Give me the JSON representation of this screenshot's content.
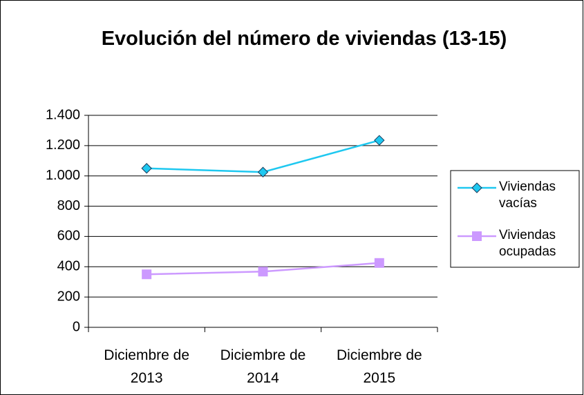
{
  "chart_data": {
    "type": "line",
    "title": "Evolución del número de viviendas (13-15)",
    "categories": [
      "Diciembre de 2013",
      "Diciembre de 2014",
      "Diciembre de 2015"
    ],
    "series": [
      {
        "name": "Viviendas vacías",
        "color": "#1ec8f0",
        "marker": "diamond",
        "values": [
          1050,
          1025,
          1235
        ]
      },
      {
        "name": "Viviendas ocupadas",
        "color": "#cc99ff",
        "marker": "square",
        "values": [
          350,
          368,
          425
        ]
      }
    ],
    "ylim": [
      0,
      1400
    ],
    "yticks": [
      0,
      200,
      400,
      600,
      800,
      {
        "value": 1000,
        "label": "1.000"
      },
      {
        "value": 1200,
        "label": "1.200"
      },
      {
        "value": 1400,
        "label": "1.400"
      }
    ],
    "grid": true,
    "legend": "right"
  }
}
